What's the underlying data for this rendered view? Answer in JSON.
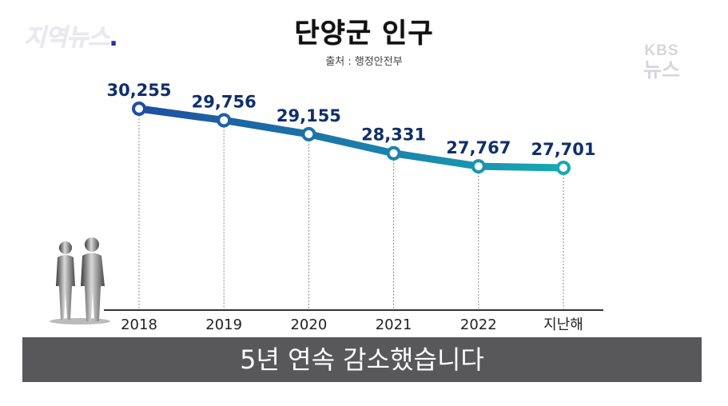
{
  "logo_left": {
    "text": "지역뉴스",
    "dot": "."
  },
  "watermark": {
    "line1": "KBS",
    "line2": "뉴스"
  },
  "caption": "5년 연속 감소했습니다",
  "chart_data": {
    "type": "line",
    "title": "단양군 인구",
    "subtitle": "출처 : 행정안전부",
    "categories": [
      "2018",
      "2019",
      "2020",
      "2021",
      "2022",
      "지난해"
    ],
    "series": [
      {
        "values": [
          30255,
          29756,
          29155,
          28331,
          27767,
          27701
        ]
      }
    ],
    "data_labels": [
      "30,255",
      "29,756",
      "29,155",
      "28,331",
      "27,767",
      "27,701"
    ],
    "ylim": [
      25000,
      31000
    ],
    "xlabel": "",
    "ylabel": "",
    "grid": false,
    "colors": {
      "line_start": "#1f4fa0",
      "line_end": "#17a8b4",
      "label": "#0f2f6a",
      "axis": "#333333",
      "drop_line": "#888888"
    }
  }
}
